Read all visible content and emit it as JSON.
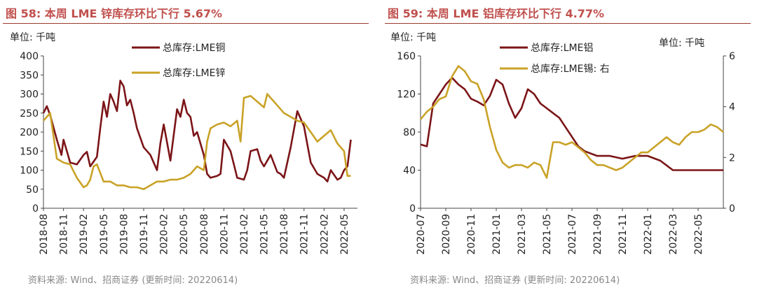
{
  "colors": {
    "title": "#C0504D",
    "series1": "#7B1518",
    "series2": "#C9A227"
  },
  "chart_data": [
    {
      "type": "line",
      "title": "图 58: 本周 LME 锌库存环比下行 5.67%",
      "unit": "单位: 千吨",
      "source": "资料来源: Wind、招商证券 (更新时间: 20220614)",
      "ylim": [
        0,
        400
      ],
      "yticks": [
        "0",
        "50",
        "100",
        "150",
        "200",
        "250",
        "300",
        "350",
        "400"
      ],
      "xlim": [
        0,
        47
      ],
      "xticks": [
        {
          "pos": 0,
          "label": "2018-08"
        },
        {
          "pos": 3,
          "label": "2018-11"
        },
        {
          "pos": 6,
          "label": "2019-02"
        },
        {
          "pos": 9,
          "label": "2019-05"
        },
        {
          "pos": 12,
          "label": "2019-08"
        },
        {
          "pos": 15,
          "label": "2019-11"
        },
        {
          "pos": 18,
          "label": "2020-02"
        },
        {
          "pos": 21,
          "label": "2020-05"
        },
        {
          "pos": 24,
          "label": "2020-08"
        },
        {
          "pos": 27,
          "label": "2020-11"
        },
        {
          "pos": 30,
          "label": "2021-02"
        },
        {
          "pos": 33,
          "label": "2021-05"
        },
        {
          "pos": 36,
          "label": "2021-08"
        },
        {
          "pos": 39,
          "label": "2021-11"
        },
        {
          "pos": 42,
          "label": "2022-02"
        },
        {
          "pos": 45,
          "label": "2022-05"
        }
      ],
      "series": [
        {
          "name": "总库存:LME铜",
          "axis": "left",
          "x": [
            0,
            0.5,
            1,
            2,
            2.7,
            3,
            3.5,
            4,
            5,
            6,
            6.5,
            7,
            8,
            8.5,
            9,
            9.5,
            10,
            10.5,
            11,
            11.5,
            12,
            12.5,
            13,
            13.5,
            14,
            15,
            16,
            17,
            17.5,
            18,
            19,
            20,
            20.5,
            21,
            21.5,
            22,
            22.5,
            23,
            24,
            24.5,
            25,
            26,
            26.5,
            27,
            28,
            28.5,
            29,
            30,
            30.5,
            31,
            32,
            32.5,
            33,
            34,
            35,
            35.5,
            36,
            37,
            38,
            39,
            40,
            41,
            42,
            42.5,
            43,
            44,
            44.5,
            45,
            45.5,
            46
          ],
          "values": [
            250,
            268,
            245,
            180,
            140,
            180,
            150,
            120,
            115,
            140,
            148,
            110,
            135,
            210,
            280,
            240,
            300,
            280,
            255,
            335,
            320,
            270,
            285,
            250,
            210,
            160,
            140,
            100,
            170,
            220,
            125,
            260,
            240,
            285,
            250,
            240,
            190,
            200,
            140,
            90,
            80,
            85,
            90,
            180,
            150,
            115,
            80,
            75,
            100,
            150,
            155,
            125,
            110,
            140,
            95,
            90,
            80,
            160,
            255,
            215,
            120,
            90,
            80,
            70,
            100,
            75,
            80,
            100,
            110,
            180
          ]
        },
        {
          "name": "总库存:LME锌",
          "axis": "left",
          "x": [
            0,
            1,
            2,
            3,
            4,
            5,
            6,
            6.5,
            7,
            7.5,
            8,
            9,
            10,
            11,
            12,
            13,
            14,
            15,
            16,
            17,
            18,
            19,
            20,
            21,
            22,
            23,
            24,
            24.5,
            25,
            26,
            27,
            28,
            29,
            29.5,
            30,
            31,
            32,
            33,
            33.5,
            34,
            35,
            36,
            37,
            38,
            39,
            40,
            41,
            42,
            43,
            44,
            45,
            45.5,
            46
          ],
          "values": [
            230,
            250,
            130,
            120,
            115,
            80,
            55,
            60,
            75,
            110,
            115,
            70,
            70,
            60,
            60,
            55,
            55,
            50,
            60,
            70,
            70,
            75,
            75,
            80,
            90,
            110,
            100,
            175,
            210,
            220,
            225,
            215,
            230,
            175,
            290,
            295,
            280,
            265,
            300,
            290,
            270,
            250,
            240,
            230,
            225,
            200,
            175,
            190,
            205,
            170,
            150,
            85,
            85
          ]
        }
      ]
    },
    {
      "type": "line",
      "title": "图 59: 本周 LME 铝库存环比下行 4.77%",
      "unit": "单位: 千吨",
      "unit_right": "单位: 千吨",
      "source": "资料来源: Wind、招商证券 (更新时间: 20220614)",
      "ylim": [
        0,
        160
      ],
      "yticks": [
        "0",
        "40",
        "80",
        "120",
        "160"
      ],
      "y2lim": [
        0,
        6
      ],
      "y2ticks": [
        "0",
        "2",
        "4",
        "6"
      ],
      "xlim": [
        0,
        24
      ],
      "xticks": [
        {
          "pos": 0,
          "label": "2020-07"
        },
        {
          "pos": 2,
          "label": "2020-09"
        },
        {
          "pos": 4,
          "label": "2020-11"
        },
        {
          "pos": 6,
          "label": "2021-01"
        },
        {
          "pos": 8,
          "label": "2021-03"
        },
        {
          "pos": 10,
          "label": "2021-05"
        },
        {
          "pos": 12,
          "label": "2021-07"
        },
        {
          "pos": 14,
          "label": "2021-09"
        },
        {
          "pos": 16,
          "label": "2021-11"
        },
        {
          "pos": 18,
          "label": "2022-01"
        },
        {
          "pos": 20,
          "label": "2022-03"
        },
        {
          "pos": 22,
          "label": "2022-05"
        }
      ],
      "series": [
        {
          "name": "总库存:LME铝",
          "axis": "left",
          "x": [
            0,
            0.5,
            1,
            1.5,
            2,
            2.5,
            3,
            3.5,
            4,
            4.5,
            5,
            5.5,
            6,
            6.5,
            7,
            7.5,
            8,
            8.5,
            9,
            9.5,
            10,
            10.5,
            11,
            11.5,
            12,
            12.5,
            13,
            14,
            15,
            16,
            17,
            18,
            19,
            19.5,
            20,
            21,
            22,
            23,
            24
          ],
          "values": [
            67,
            65,
            110,
            120,
            130,
            137,
            130,
            125,
            115,
            112,
            108,
            118,
            135,
            130,
            110,
            95,
            105,
            125,
            120,
            110,
            105,
            100,
            95,
            85,
            75,
            65,
            60,
            55,
            55,
            52,
            55,
            55,
            50,
            45,
            40,
            40,
            40,
            40,
            40
          ]
        },
        {
          "name": "总库存:LME锡: 右",
          "axis": "right",
          "x": [
            0,
            0.5,
            1,
            1.5,
            2,
            2.5,
            3,
            3.5,
            4,
            4.5,
            5,
            5.5,
            6,
            6.5,
            7,
            7.5,
            8,
            8.5,
            9,
            9.5,
            10,
            10.5,
            11,
            11.5,
            12,
            12.5,
            13,
            13.5,
            14,
            14.5,
            15,
            15.5,
            16,
            16.5,
            17,
            17.5,
            18,
            18.5,
            19,
            19.5,
            20,
            20.5,
            21,
            21.5,
            22,
            22.5,
            23,
            23.5,
            24
          ],
          "values": [
            3.5,
            3.8,
            4.0,
            4.3,
            4.4,
            5.2,
            5.6,
            5.4,
            5.0,
            4.9,
            4.3,
            3.2,
            2.3,
            1.8,
            1.6,
            1.7,
            1.7,
            1.6,
            1.8,
            1.7,
            1.2,
            2.6,
            2.6,
            2.5,
            2.6,
            2.4,
            2.2,
            1.9,
            1.7,
            1.7,
            1.6,
            1.5,
            1.6,
            1.8,
            2.0,
            2.2,
            2.2,
            2.4,
            2.6,
            2.8,
            2.6,
            2.5,
            2.8,
            3.0,
            3.0,
            3.1,
            3.3,
            3.2,
            3.0
          ]
        }
      ]
    }
  ]
}
